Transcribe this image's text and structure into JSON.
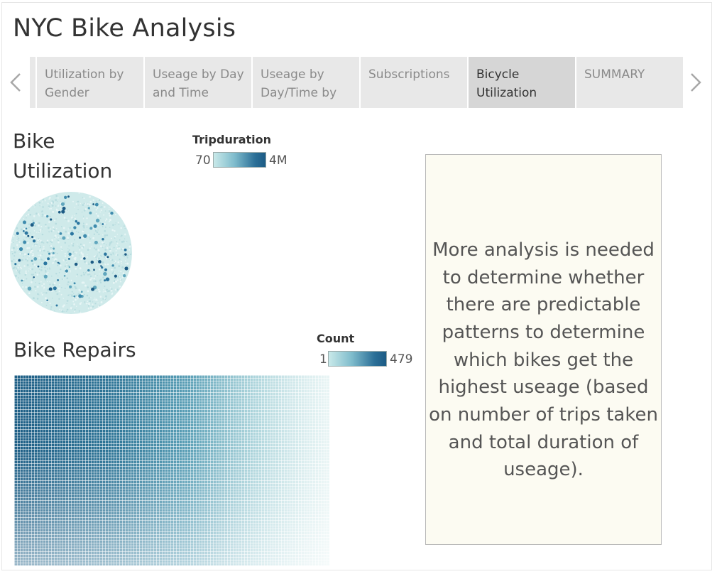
{
  "dashboard": {
    "title": "NYC Bike Analysis"
  },
  "tabs": [
    {
      "label": "Utilization by\nGender",
      "active": false
    },
    {
      "label": "Useage by Day\nand Time",
      "active": false
    },
    {
      "label": "Useage by\nDay/Time by",
      "active": false
    },
    {
      "label": "Subscriptions",
      "active": false
    },
    {
      "label": "Bicycle\nUtilization",
      "active": true
    },
    {
      "label": "SUMMARY",
      "active": false
    }
  ],
  "nav": {
    "prev_icon": "chevron-left-icon",
    "next_icon": "chevron-right-icon"
  },
  "bike_utilization": {
    "title": "Bike Utilization",
    "legend": {
      "title": "Tripduration",
      "min": "70",
      "max": "4M"
    },
    "chart_type": "packed-bubble",
    "colors": {
      "low": "#c9e9e9",
      "high": "#1c5b85"
    }
  },
  "bike_repairs": {
    "title": "Bike Repairs",
    "legend": {
      "title": "Count",
      "min": "1",
      "max": "479"
    },
    "chart_type": "heatmap",
    "colors": {
      "low": "#c8e6e6",
      "high": "#1f5f86"
    }
  },
  "summary": {
    "text": "More analysis is needed to determine whether there are predictable patterns to determine which bikes get the highest useage (based on number of trips taken and total duration of useage).",
    "background": "#fcfbf2"
  }
}
